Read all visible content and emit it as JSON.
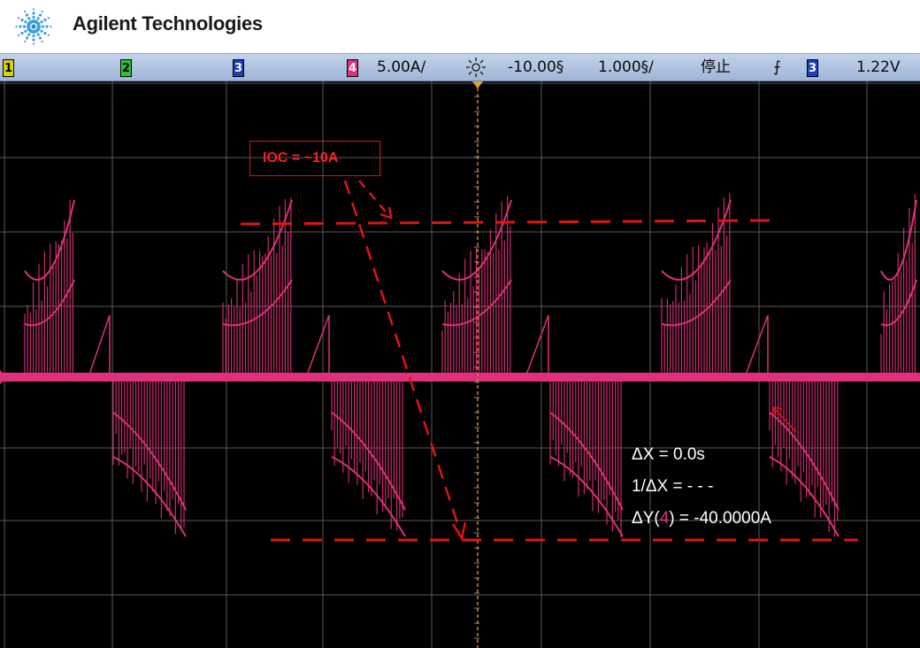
{
  "brand": {
    "name": "Agilent Technologies",
    "logo_icon": "agilent-spark-logo-icon"
  },
  "status_bar": {
    "channel_1": "1",
    "channel_2": "2",
    "channel_3": "3",
    "channel_4": "4",
    "ch4_scale": "5.00A/",
    "trigger_icon": "sun-icon",
    "time_offset": "-10.00§",
    "time_scale": "1.000§/",
    "run_state": "停止",
    "trigger_edge_icon": "falling-edge-icon",
    "trigger_edge": "⨍",
    "trigger_source": "3",
    "trigger_level": "1.22V"
  },
  "annotation": {
    "label": "IOC = ~10A"
  },
  "measurements": {
    "delta_x": "ΔX = 0.0s",
    "inv_delta_x": "1/ΔX = - - -",
    "delta_y_prefix": "ΔY(",
    "delta_y_channel": "4",
    "delta_y_suffix": ") = -40.0000A"
  },
  "colors": {
    "trace": "#e0307a",
    "annotation": "#e01414",
    "cursor": "#c8822a",
    "grid": "#5a5a5a",
    "background": "#000000",
    "statusbar": "#b0c4e3"
  },
  "waveform": {
    "channel": "4",
    "shape": "alternating bursts of switching spikes (positive bursts, then negative bursts)"
  }
}
